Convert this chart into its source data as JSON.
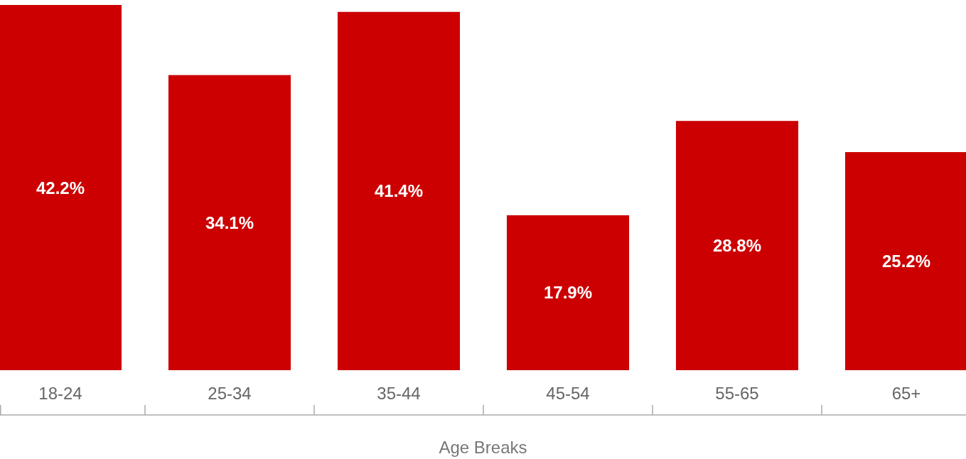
{
  "chart_data": {
    "type": "bar",
    "xlabel": "Age Breaks",
    "categories": [
      "18-24",
      "25-34",
      "35-44",
      "45-54",
      "55-65",
      "65+"
    ],
    "values": [
      42.2,
      34.1,
      41.4,
      17.9,
      28.8,
      25.2
    ],
    "value_labels": [
      "42.2%",
      "34.1%",
      "41.4%",
      "17.9%",
      "28.8%",
      "25.2%"
    ],
    "color": "#cc0000"
  }
}
